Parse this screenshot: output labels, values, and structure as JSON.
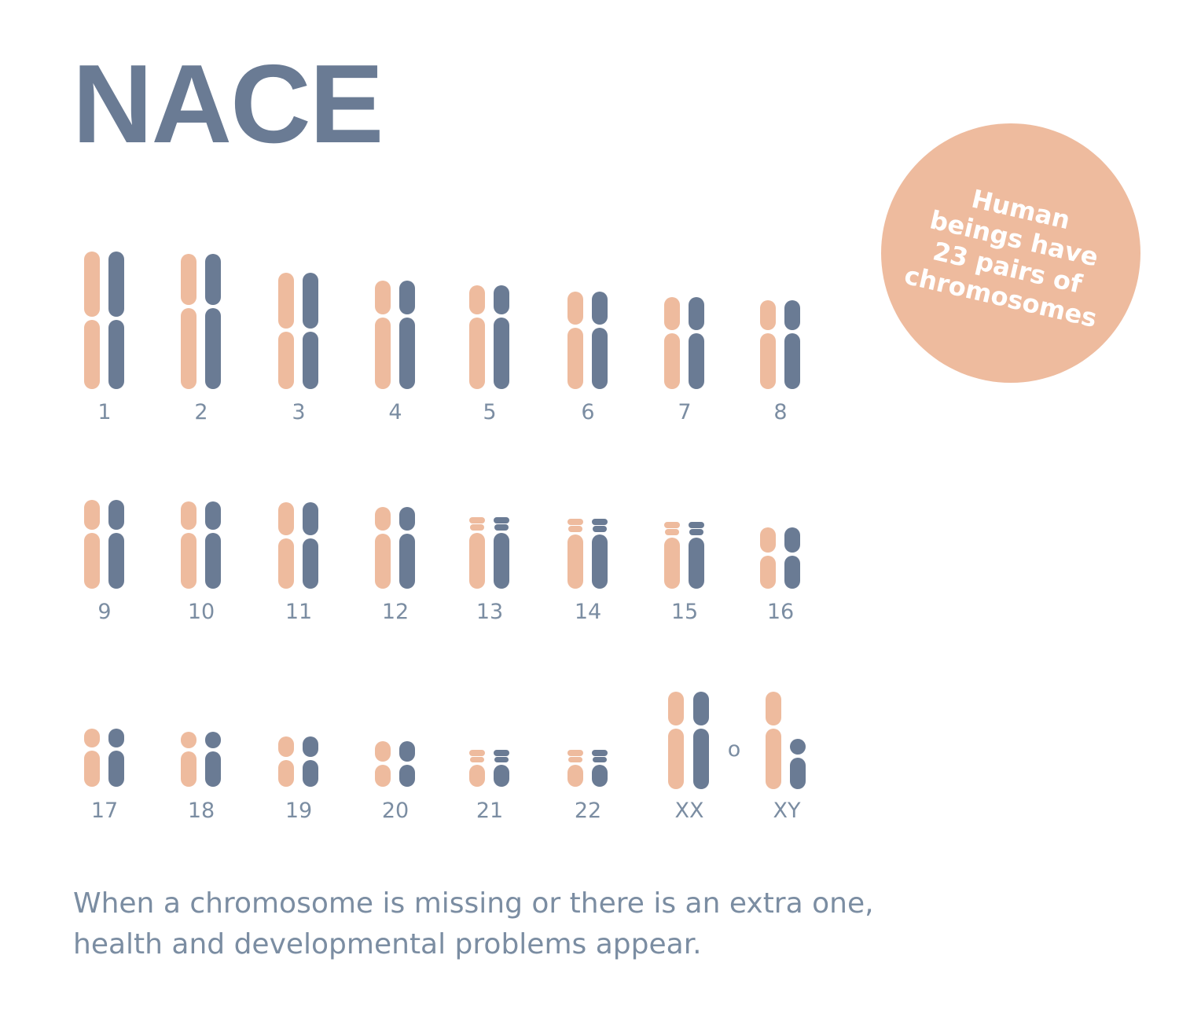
{
  "title": "NACE",
  "badge": {
    "lines": [
      "Human",
      "beings have",
      "23 pairs of",
      "chromosomes"
    ]
  },
  "colors": {
    "maternal": "#eebb9e",
    "paternal": "#6a7b94",
    "text": "#7b8da2"
  },
  "pairs": [
    "1",
    "2",
    "3",
    "4",
    "5",
    "6",
    "7",
    "8",
    "9",
    "10",
    "11",
    "12",
    "13",
    "14",
    "15",
    "16",
    "17",
    "18",
    "19",
    "20",
    "21",
    "22",
    "XX",
    "XY"
  ],
  "separator": "o",
  "footer": {
    "line1": "When a chromosome is missing or there is an extra one,",
    "line2": "health and developmental problems appear."
  }
}
